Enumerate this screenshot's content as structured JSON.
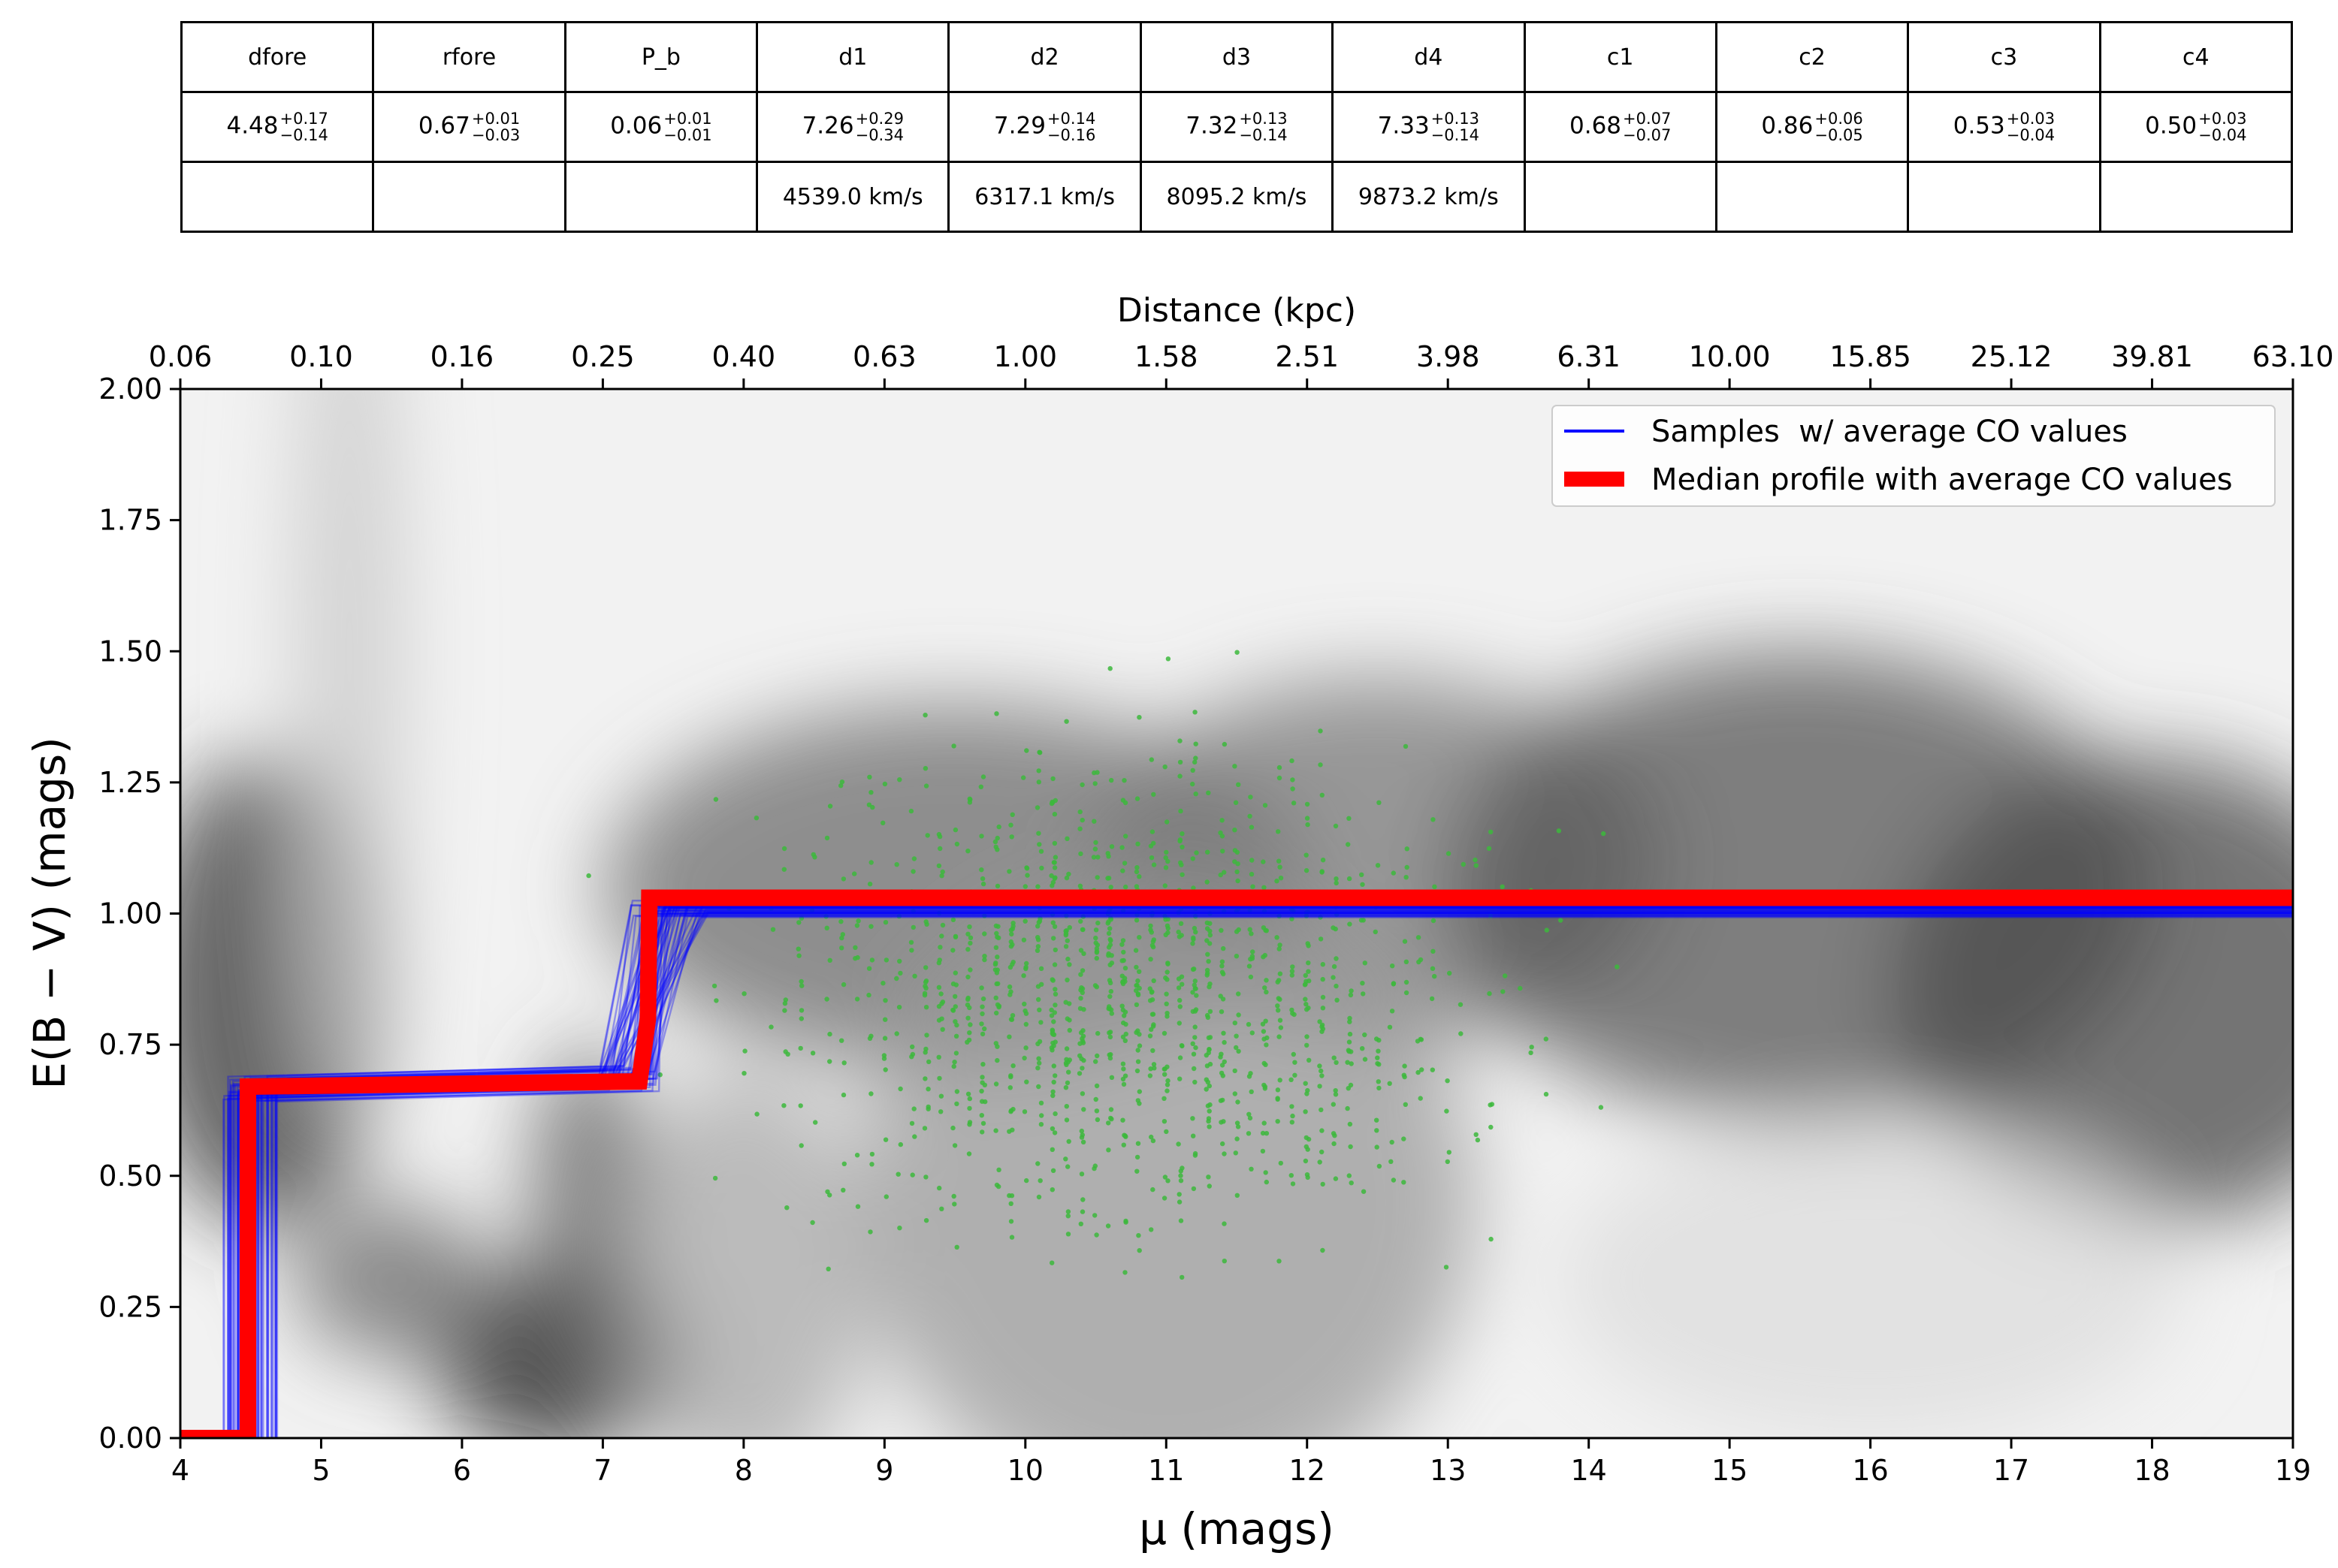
{
  "table": {
    "headers": [
      "dfore",
      "rfore",
      "P_b",
      "d1",
      "d2",
      "d3",
      "d4",
      "c1",
      "c2",
      "c3",
      "c4"
    ],
    "values": [
      {
        "v": "4.48",
        "up": "+0.17",
        "lo": "−0.14"
      },
      {
        "v": "0.67",
        "up": "+0.01",
        "lo": "−0.03"
      },
      {
        "v": "0.06",
        "up": "+0.01",
        "lo": "−0.01"
      },
      {
        "v": "7.26",
        "up": "+0.29",
        "lo": "−0.34"
      },
      {
        "v": "7.29",
        "up": "+0.14",
        "lo": "−0.16"
      },
      {
        "v": "7.32",
        "up": "+0.13",
        "lo": "−0.14"
      },
      {
        "v": "7.33",
        "up": "+0.13",
        "lo": "−0.14"
      },
      {
        "v": "0.68",
        "up": "+0.07",
        "lo": "−0.07"
      },
      {
        "v": "0.86",
        "up": "+0.06",
        "lo": "−0.05"
      },
      {
        "v": "0.53",
        "up": "+0.03",
        "lo": "−0.04"
      },
      {
        "v": "0.50",
        "up": "+0.03",
        "lo": "−0.04"
      }
    ],
    "velocities": [
      "",
      "",
      "",
      "4539.0 km/s",
      "6317.1 km/s",
      "8095.2 km/s",
      "9873.2 km/s",
      "",
      "",
      "",
      ""
    ]
  },
  "chart_data": {
    "type": "line",
    "xlabel": "μ (mags)",
    "ylabel": "E(B − V) (mags)",
    "top_xlabel": "Distance (kpc)",
    "xlim": [
      4,
      19
    ],
    "ylim": [
      0,
      2
    ],
    "x_ticks": [
      4,
      5,
      6,
      7,
      8,
      9,
      10,
      11,
      12,
      13,
      14,
      15,
      16,
      17,
      18,
      19
    ],
    "y_ticks": [
      "0.00",
      "0.25",
      "0.50",
      "0.75",
      "1.00",
      "1.25",
      "1.50",
      "1.75",
      "2.00"
    ],
    "top_ticks": [
      "0.06",
      "0.10",
      "0.16",
      "0.25",
      "0.40",
      "0.63",
      "1.00",
      "1.58",
      "2.51",
      "3.98",
      "6.31",
      "10.00",
      "15.85",
      "25.12",
      "39.81",
      "63.10"
    ],
    "legend_position": "top-right",
    "colors": {
      "samples": "#0000ff",
      "median": "#ff0000",
      "stars": "#3cb83c"
    },
    "series": [
      {
        "name": "Samples  w/ average CO values",
        "kind": "sample-profiles",
        "color": "#0000ff"
      },
      {
        "name": "Median profile with average CO values",
        "kind": "median-profile",
        "color": "#ff0000",
        "x": [
          4.0,
          4.48,
          4.48,
          7.26,
          7.29,
          7.32,
          7.33,
          19.0
        ],
        "y": [
          0.0,
          0.0,
          0.67,
          0.68,
          0.74,
          0.8,
          1.03,
          1.03
        ]
      }
    ]
  }
}
